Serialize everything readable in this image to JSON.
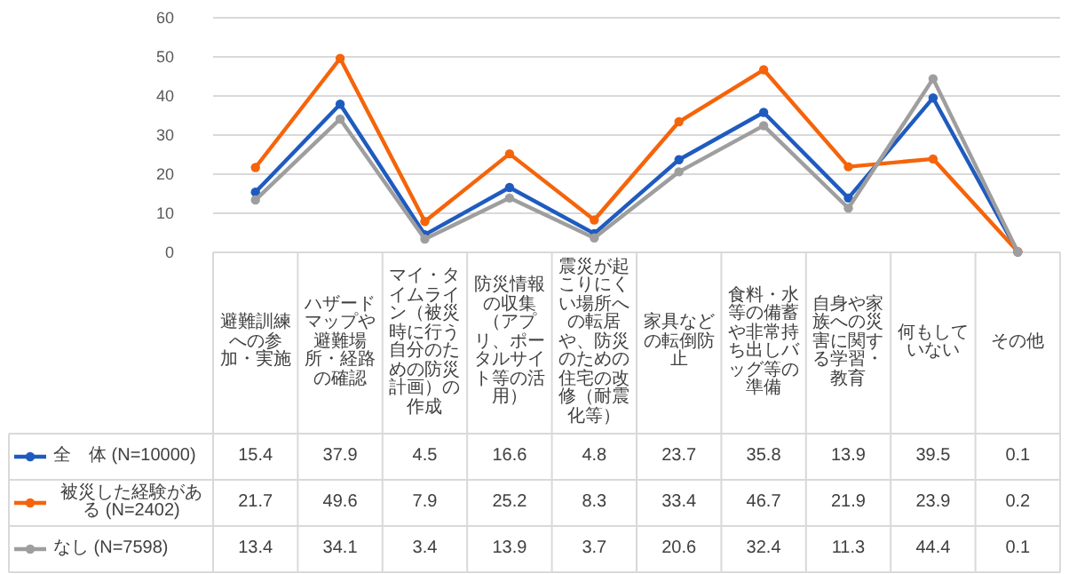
{
  "chart_data": {
    "type": "line",
    "categories": [
      "避難訓練への参加・実施",
      "ハザードマップや避難場所・経路の確認",
      "マイ・タイムライン（被災時に行う自分のための防災計画）の作成",
      "防災情報の収集（アプリ、ポータルサイト等の活用）",
      "震災が起こりにくい場所への転居や、防災のための住宅の改修（耐震化等）",
      "家具などの転倒防止",
      "食料・水等の備蓄や非常持ち出しバッグ等の準備",
      "自身や家族への災害に関する学習・教育",
      "何もしていない",
      "その他"
    ],
    "series": [
      {
        "name": "全　体 (N=10000)",
        "color": "#1f5bbf",
        "values": [
          15.4,
          37.9,
          4.5,
          16.6,
          4.8,
          23.7,
          35.8,
          13.9,
          39.5,
          0.1
        ]
      },
      {
        "name": "被災した経験がある (N=2402)",
        "color": "#f5640a",
        "values": [
          21.7,
          49.6,
          7.9,
          25.2,
          8.3,
          33.4,
          46.7,
          21.9,
          23.9,
          0.2
        ]
      },
      {
        "name": "なし (N=7598)",
        "color": "#9e9e9e",
        "values": [
          13.4,
          34.1,
          3.4,
          13.9,
          3.7,
          20.6,
          32.4,
          11.3,
          44.4,
          0.1
        ]
      }
    ],
    "ylim": [
      0,
      60
    ],
    "yticks": [
      0,
      10,
      20,
      30,
      40,
      50,
      60
    ],
    "grid": "y",
    "marker": "circle",
    "legend": "left",
    "data_labels": true
  }
}
